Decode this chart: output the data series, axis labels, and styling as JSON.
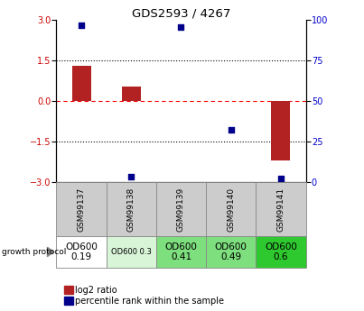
{
  "title": "GDS2593 / 4267",
  "samples": [
    "GSM99137",
    "GSM99138",
    "GSM99139",
    "GSM99140",
    "GSM99141"
  ],
  "log2_ratio": [
    1.3,
    0.55,
    0.0,
    0.0,
    -2.2
  ],
  "percentile_rank": [
    97,
    3,
    96,
    32,
    2
  ],
  "bar_color": "#b22222",
  "dot_color": "#00008b",
  "ylim_left": [
    -3,
    3
  ],
  "ylim_right": [
    0,
    100
  ],
  "yticks_left": [
    -3,
    -1.5,
    0,
    1.5,
    3
  ],
  "yticks_right": [
    0,
    25,
    50,
    75,
    100
  ],
  "protocol_labels": [
    "OD600\n0.19",
    "OD600 0.3",
    "OD600\n0.41",
    "OD600\n0.49",
    "OD600\n0.6"
  ],
  "protocol_colors": [
    "#ffffff",
    "#d8f5d8",
    "#7ddf7d",
    "#7ddf7d",
    "#2ec92e"
  ],
  "protocol_label_fontsize": [
    7.5,
    6,
    7.5,
    7.5,
    7.5
  ],
  "growth_protocol_text": "growth protocol",
  "legend_red_label": "log2 ratio",
  "legend_blue_label": "percentile rank within the sample",
  "sample_box_color": "#cccccc",
  "tick_label_color_left": "#cc0000",
  "tick_label_color_right": "#0000cc"
}
